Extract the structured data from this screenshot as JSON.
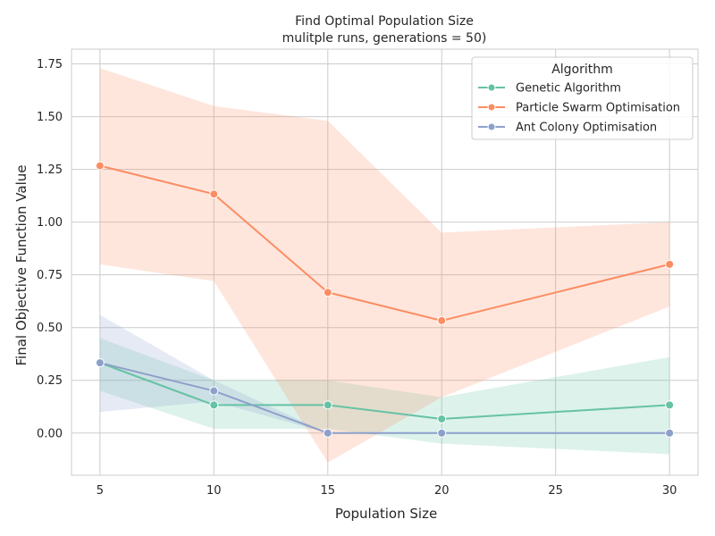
{
  "chart_data": {
    "type": "line",
    "title_line1": "Find Optimal Population Size",
    "title_line2": "mulitple runs, generations = 50)",
    "xlabel": "Population Size",
    "ylabel": "Final Objective Function Value",
    "xlim": [
      3.75,
      31.25
    ],
    "ylim": [
      -0.2,
      1.82
    ],
    "x_ticks": [
      5,
      10,
      15,
      20,
      25,
      30
    ],
    "x_tick_labels": [
      "5",
      "10",
      "15",
      "20",
      "25",
      "30"
    ],
    "y_ticks": [
      0.0,
      0.25,
      0.5,
      0.75,
      1.0,
      1.25,
      1.5,
      1.75
    ],
    "y_tick_labels": [
      "0.00",
      "0.25",
      "0.50",
      "0.75",
      "1.00",
      "1.25",
      "1.50",
      "1.75"
    ],
    "grid": true,
    "legend": {
      "title": "Algorithm",
      "placement": "top-right"
    },
    "series": [
      {
        "name": "Genetic Algorithm",
        "color": "#66c2a5",
        "x": [
          5,
          10,
          15,
          20,
          30
        ],
        "y": [
          0.333,
          0.133,
          0.133,
          0.067,
          0.133
        ],
        "ci_low": [
          0.2,
          0.02,
          0.02,
          -0.05,
          -0.1
        ],
        "ci_high": [
          0.45,
          0.25,
          0.25,
          0.17,
          0.36
        ]
      },
      {
        "name": "Particle Swarm Optimisation",
        "color": "#fc8d62",
        "x": [
          5,
          10,
          15,
          20,
          30
        ],
        "y": [
          1.267,
          1.133,
          0.667,
          0.533,
          0.8
        ],
        "ci_low": [
          0.8,
          0.72,
          -0.14,
          0.17,
          0.6
        ],
        "ci_high": [
          1.73,
          1.55,
          1.48,
          0.95,
          1.0
        ]
      },
      {
        "name": "Ant Colony Optimisation",
        "color": "#8da0cb",
        "x": [
          5,
          10,
          15,
          20,
          30
        ],
        "y": [
          0.333,
          0.2,
          0.0,
          0.0,
          0.0
        ],
        "ci_low": [
          0.1,
          0.15,
          0.0,
          0.0,
          0.0
        ],
        "ci_high": [
          0.56,
          0.25,
          0.0,
          0.0,
          0.0
        ]
      }
    ]
  }
}
